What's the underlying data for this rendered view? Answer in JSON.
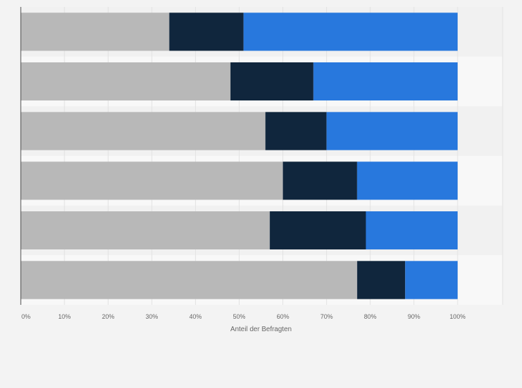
{
  "chart_data": {
    "type": "bar",
    "orientation": "horizontal",
    "stacked": true,
    "xlabel": "Anteil der Befragten",
    "x_tick_labels": [
      "0%",
      "10%",
      "20%",
      "30%",
      "40%",
      "50%",
      "60%",
      "70%",
      "80%",
      "90%",
      "100%"
    ],
    "xlim": [
      0,
      100
    ],
    "grid": true,
    "legend": "none",
    "categories": [
      "",
      "",
      "",
      "",
      "",
      ""
    ],
    "series": [
      {
        "color": "#b8b8b8",
        "values": [
          34,
          48,
          56,
          60,
          57,
          77
        ]
      },
      {
        "color": "#10263d",
        "values": [
          17,
          19,
          14,
          17,
          22,
          11
        ]
      },
      {
        "color": "#2878dd",
        "values": [
          49,
          33,
          30,
          23,
          21,
          12
        ]
      }
    ]
  }
}
